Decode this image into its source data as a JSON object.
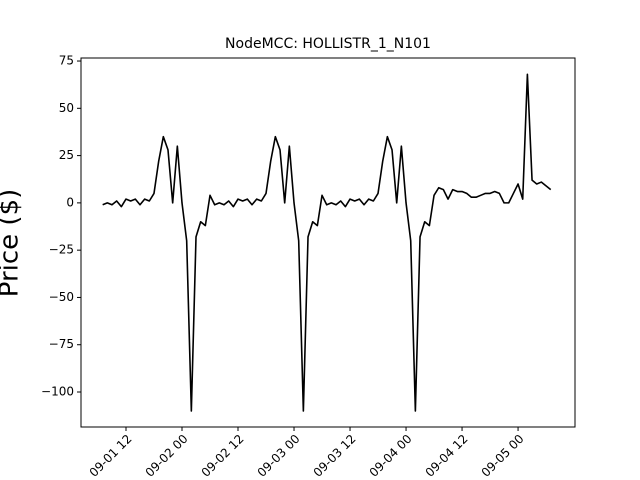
{
  "chart_data": {
    "type": "line",
    "title": "NodeMCC: HOLLISTR_1_N101",
    "y_label": "Price ($)",
    "x": [
      7,
      8,
      9,
      10,
      11,
      12,
      13,
      14,
      15,
      16,
      17,
      18,
      19,
      20,
      21,
      22,
      23,
      24,
      25,
      26,
      27,
      28,
      29,
      30,
      31,
      32,
      33,
      34,
      35,
      36,
      37,
      38,
      39,
      40,
      41,
      42,
      43,
      44,
      45,
      46,
      47,
      48,
      49,
      50,
      51,
      52,
      53,
      54,
      55,
      56,
      57,
      58,
      59,
      60,
      61,
      62,
      63,
      64,
      65,
      66,
      67,
      68,
      69,
      70,
      71,
      72,
      73,
      74,
      75,
      76,
      77,
      78,
      79,
      80,
      81,
      82,
      83,
      84,
      85,
      86,
      87,
      88,
      89,
      90,
      91,
      92,
      93,
      94,
      95,
      96,
      97,
      98,
      99,
      100,
      101,
      102,
      103
    ],
    "series": [
      {
        "color": "#000000",
        "values": [
          -1,
          0,
          -1,
          1,
          -2,
          2,
          1,
          2,
          -1,
          2,
          1,
          5,
          22,
          35,
          28,
          0,
          30,
          0,
          -20,
          -110,
          -18,
          -10,
          -12,
          4,
          -1,
          0,
          -1,
          1,
          -2,
          2,
          1,
          2,
          -1,
          2,
          1,
          5,
          22,
          35,
          28,
          0,
          30,
          0,
          -20,
          -110,
          -18,
          -10,
          -12,
          4,
          -1,
          0,
          -1,
          1,
          -2,
          2,
          1,
          2,
          -1,
          2,
          1,
          5,
          22,
          35,
          28,
          0,
          30,
          0,
          -20,
          -110,
          -18,
          -10,
          -12,
          4,
          8,
          7,
          2,
          7,
          6,
          6,
          5,
          3,
          3,
          4,
          5,
          5,
          6,
          5,
          0,
          0,
          5,
          10,
          2,
          68,
          12,
          10,
          11,
          9,
          7
        ]
      }
    ],
    "xlim": [
      2.36,
      108.2
    ],
    "xticks": [
      {
        "value": 12,
        "label": "09-01 12"
      },
      {
        "value": 24,
        "label": "09-02 00"
      },
      {
        "value": 36,
        "label": "09-02 12"
      },
      {
        "value": 48,
        "label": "09-03 00"
      },
      {
        "value": 60,
        "label": "09-03 12"
      },
      {
        "value": 72,
        "label": "09-04 00"
      },
      {
        "value": 84,
        "label": "09-04 12"
      },
      {
        "value": 96,
        "label": "09-05 00"
      }
    ],
    "ylim": [
      -118.5,
      76.6
    ],
    "yticks": [
      {
        "value": -100,
        "label": "−100"
      },
      {
        "value": -75,
        "label": "−75"
      },
      {
        "value": -50,
        "label": "−50"
      },
      {
        "value": -25,
        "label": "−25"
      },
      0,
      25,
      50,
      75
    ]
  }
}
